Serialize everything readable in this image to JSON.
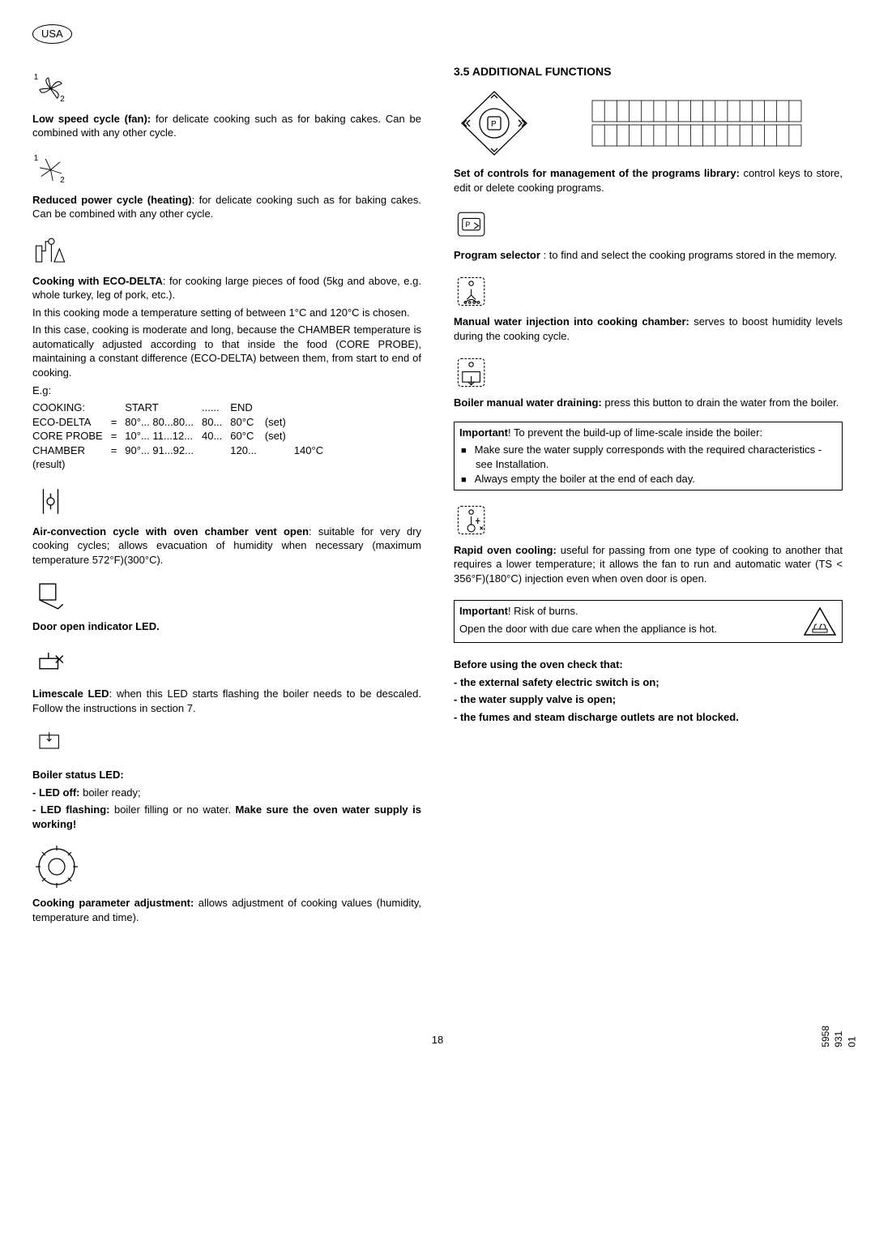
{
  "region": "USA",
  "left": {
    "fan": {
      "title": "Low speed cycle (fan):",
      "text": " for delicate cooking such as for baking cakes. Can be combined with any other cycle."
    },
    "reduced": {
      "title": "Reduced power cycle (heating)",
      "text": ": for delicate cooking such as for baking cakes. Can be combined with any other cycle."
    },
    "eco": {
      "title": "Cooking with ECO-DELTA",
      "intro": ": for cooking large pieces of food (5kg and above, e.g. whole turkey, leg of pork, etc.).",
      "p1": "In this cooking mode a temperature setting of between 1°C and 120°C is chosen.",
      "p2": "In this case, cooking is moderate and long, because the CHAMBER temperature is automatically adjusted according to that inside the food (CORE PROBE), maintaining a constant difference (ECO-DELTA) between them, from start to end of cooking.",
      "eg": "E.g:",
      "table": {
        "rows": [
          [
            "COOKING:",
            "",
            "START",
            "......",
            "END",
            "",
            ""
          ],
          [
            "ECO-DELTA",
            "=",
            "80°... 80...80...",
            "80...",
            "80°C",
            "(set)",
            ""
          ],
          [
            "CORE PROBE",
            "=",
            "10°... 11...12...",
            "40...",
            "60°C",
            "(set)",
            ""
          ],
          [
            "CHAMBER",
            "=",
            "90°... 91...92...",
            "",
            "120...",
            "",
            "140°C"
          ],
          [
            "(result)",
            "",
            "",
            "",
            "",
            "",
            ""
          ]
        ]
      }
    },
    "vent": {
      "title": "Air-convection cycle with oven chamber vent open",
      "text": ": suitable for very dry cooking cycles; allows evacuation of humidity when necessary (maximum temperature 572°F)(300°C)."
    },
    "door": {
      "title": "Door open indicator LED."
    },
    "lime": {
      "title": "Limescale LED",
      "text": ": when this LED starts flashing the boiler needs to be descaled. Follow the instructions in section 7."
    },
    "boiler": {
      "title": "Boiler status LED:",
      "l1a": "- LED off:",
      "l1b": " boiler ready;",
      "l2a": "- LED  flashing:",
      "l2b": " boiler filling or no water. ",
      "l2c": "Make sure the oven water supply is working!"
    },
    "knob": {
      "title": "Cooking parameter adjustment:",
      "text": " allows adjustment of cooking values (humidity, temperature and time)."
    }
  },
  "right": {
    "heading": "3.5   ADDITIONAL FUNCTIONS",
    "ctrl": {
      "title": "Set of controls for management of the programs library:",
      "text": " control keys to store, edit or delete cooking programs."
    },
    "prog": {
      "title": "Program selector ",
      "text": ": to find and select the cooking programs stored in the memory."
    },
    "inject": {
      "title": "Manual water injection into cooking chamber:",
      "text": " serves to boost humidity levels during the cooking cycle."
    },
    "drain": {
      "title": "Boiler manual water draining:",
      "text": " press this button to drain the water from the boiler."
    },
    "imp1": {
      "lead": "Important",
      "text": "! To prevent the build-up of lime-scale inside the boiler:",
      "b1": "Make sure the water supply corresponds with the required characteristics - see Installation.",
      "b2": "Always empty the boiler at the end of each day."
    },
    "cool": {
      "title": "Rapid oven cooling:",
      "text": " useful for passing from one type of cooking to another that requires a lower temperature; it allows the fan to run and automatic water (TS < 356°F)(180°C) injection even when oven door is open."
    },
    "imp2": {
      "lead": "Important",
      "t1": "! Risk of burns.",
      "t2": "Open the door with due care when the appliance is hot."
    },
    "before": {
      "title": "Before using the oven check that:",
      "l1": "- the external safety electric switch is on;",
      "l2": "- the water supply valve is open;",
      "l3": "- the fumes and steam discharge outlets are not blocked."
    }
  },
  "page": "18",
  "docnum": "5958 931 01"
}
